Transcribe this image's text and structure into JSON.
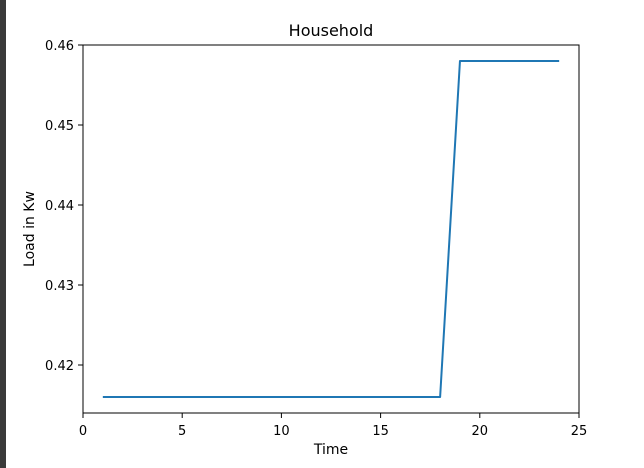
{
  "chart_data": {
    "type": "line",
    "title": "Household",
    "xlabel": "Time",
    "ylabel": "Load in Kw",
    "xlim": [
      0,
      25
    ],
    "ylim": [
      0.414,
      0.46
    ],
    "xticks": [
      0,
      5,
      10,
      15,
      20,
      25
    ],
    "yticks": [
      0.42,
      0.43,
      0.44,
      0.45,
      0.46
    ],
    "grid": false,
    "series": [
      {
        "color": "#1f77b4",
        "x": [
          1,
          2,
          3,
          4,
          5,
          6,
          7,
          8,
          9,
          10,
          11,
          12,
          13,
          14,
          15,
          16,
          17,
          18,
          19,
          20,
          21,
          22,
          23,
          24
        ],
        "y": [
          0.416,
          0.416,
          0.416,
          0.416,
          0.416,
          0.416,
          0.416,
          0.416,
          0.416,
          0.416,
          0.416,
          0.416,
          0.416,
          0.416,
          0.416,
          0.416,
          0.416,
          0.416,
          0.458,
          0.458,
          0.458,
          0.458,
          0.458,
          0.458
        ]
      }
    ]
  }
}
